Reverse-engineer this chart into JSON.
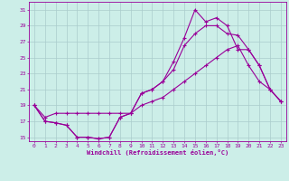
{
  "xlabel": "Windchill (Refroidissement éolien,°C)",
  "bg_color": "#cceee8",
  "line_color": "#990099",
  "grid_color": "#aacccc",
  "xlim": [
    -0.5,
    23.5
  ],
  "ylim": [
    14.5,
    32
  ],
  "xticks": [
    0,
    1,
    2,
    3,
    4,
    5,
    6,
    7,
    8,
    9,
    10,
    11,
    12,
    13,
    14,
    15,
    16,
    17,
    18,
    19,
    20,
    21,
    22,
    23
  ],
  "yticks": [
    15,
    17,
    19,
    21,
    23,
    25,
    27,
    29,
    31
  ],
  "line1_x": [
    0,
    1,
    2,
    3,
    4,
    5,
    6,
    7,
    8,
    9,
    10,
    11,
    12,
    13,
    14,
    15,
    16,
    17,
    18,
    19,
    20,
    21,
    22,
    23
  ],
  "line1_y": [
    19,
    17,
    16.8,
    16.5,
    15,
    15,
    14.8,
    15,
    17.5,
    18,
    20.5,
    21,
    22,
    23.5,
    26.5,
    28,
    29,
    29,
    28,
    27.8,
    26,
    24,
    21,
    19.5
  ],
  "line2_x": [
    0,
    1,
    2,
    3,
    4,
    5,
    6,
    7,
    8,
    9,
    10,
    11,
    12,
    13,
    14,
    15,
    16,
    17,
    18,
    19,
    20,
    21,
    22,
    23
  ],
  "line2_y": [
    19,
    17,
    16.8,
    16.5,
    15,
    15,
    14.8,
    15,
    17.5,
    18,
    20.5,
    21,
    22,
    24.5,
    27.5,
    31,
    29.5,
    30,
    29,
    26,
    26,
    24,
    21,
    19.5
  ],
  "line3_x": [
    0,
    1,
    2,
    3,
    4,
    5,
    6,
    7,
    8,
    9,
    10,
    11,
    12,
    13,
    14,
    15,
    16,
    17,
    18,
    19,
    20,
    21,
    22,
    23
  ],
  "line3_y": [
    19,
    17.5,
    18,
    18,
    18,
    18,
    18,
    18,
    18,
    18,
    19,
    19.5,
    20,
    21,
    22,
    23,
    24,
    25,
    26,
    26.5,
    24,
    22,
    21,
    19.5
  ]
}
